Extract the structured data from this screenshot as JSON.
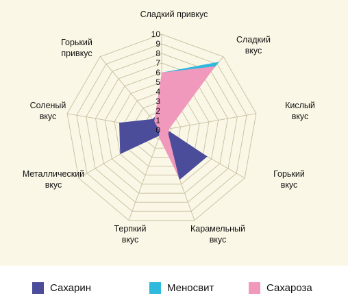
{
  "chart_data": {
    "type": "radar",
    "title": "",
    "axes": [
      "Сладкий привкус",
      "Сладкий вкус",
      "Кислый вкус",
      "Горький вкус",
      "Карамельный вкус",
      "Терпкий вкус",
      "Металлический вкус",
      "Соленый вкус",
      "Горький привкус"
    ],
    "radial_ticks": [
      "0",
      "1",
      "2",
      "3",
      "4",
      "5",
      "6",
      "7",
      "8",
      "9",
      "10"
    ],
    "rmax": 10,
    "series": [
      {
        "name": "Сахарин",
        "color": "#4b4c9a",
        "values": [
          2,
          3,
          0.5,
          5.5,
          5.5,
          0.6,
          5,
          4.5,
          1.5
        ]
      },
      {
        "name": "Меносвит",
        "color": "#2fb9dd",
        "values": [
          6,
          9.3,
          0.3,
          0.3,
          5.5,
          0.3,
          0.3,
          0.3,
          0.5
        ]
      },
      {
        "name": "Сахароза",
        "color": "#f198bd",
        "values": [
          6,
          8.7,
          0.8,
          0.8,
          5.3,
          0.8,
          0.3,
          0.3,
          1.2
        ]
      }
    ],
    "legend_position": "bottom"
  }
}
